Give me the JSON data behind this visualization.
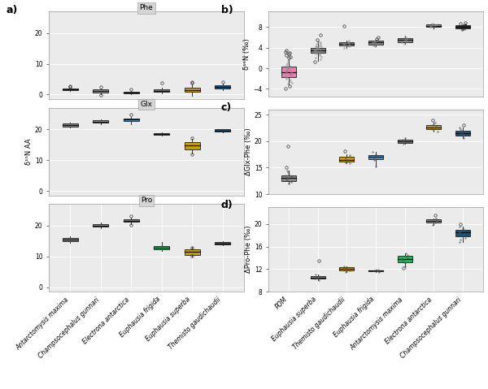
{
  "left_species": [
    "Antarctomysis maxima",
    "Champsocephalus gunnari",
    "Electrona antarctica",
    "Euphausia frigida",
    "Euphausia superba",
    "Themisto gaudichaudii"
  ],
  "right_species": [
    "POM",
    "Euphausia superba",
    "Themisto gaudichaudii",
    "Euphausia frigida",
    "Antarctomysis maxima",
    "Electrona antarctica",
    "Champsocephalus gunnari"
  ],
  "colors_left": {
    "Antarctomysis maxima": "#888888",
    "Champsocephalus gunnari": "#C8A000",
    "Electrona antarctica": "#4A90C4",
    "Euphausia frigida": "#2BAE66",
    "Euphausia superba": "#C8A000",
    "Themisto gaudichaudii": "#1A5276"
  },
  "colors_b": {
    "POM": "#E87EAC",
    "Euphausia superba": "#888888",
    "Themisto gaudichaudii": "#888888",
    "Euphausia frigida": "#888888",
    "Antarctomysis maxima": "#888888",
    "Electrona antarctica": "#C8A000",
    "Champsocephalus gunnari": "#222222"
  },
  "colors_c": {
    "POM": "#888888",
    "Themisto gaudichaudii": "#C8A000",
    "Euphausia frigida": "#4A90C4",
    "Antarctomysis maxima": "#2BAE66",
    "Electrona antarctica": "#C8A000",
    "Champsocephalus gunnari": "#1A5276"
  },
  "colors_d": {
    "Euphausia superba": "#888888",
    "Themisto gaudichaudii": "#C8A000",
    "Euphausia frigida": "#888888",
    "Antarctomysis maxima": "#2BAE66",
    "Electrona antarctica": "#C8A000",
    "Champsocephalus gunnari": "#1A5276"
  },
  "phe_data": {
    "Antarctomysis maxima": {
      "med": 1.8,
      "q1": 1.5,
      "q3": 2.1,
      "whislo": 1.2,
      "whishi": 2.3,
      "fliers": [
        2.5,
        2.7
      ]
    },
    "Champsocephalus gunnari": {
      "med": 1.2,
      "q1": 0.7,
      "q3": 1.6,
      "whislo": 0.2,
      "whishi": 2.1,
      "fliers": [
        -0.2,
        2.6
      ]
    },
    "Electrona antarctica": {
      "med": 0.7,
      "q1": 0.4,
      "q3": 1.0,
      "whislo": 0.2,
      "whishi": 1.3,
      "fliers": [
        1.6
      ]
    },
    "Euphausia frigida": {
      "med": 1.2,
      "q1": 0.8,
      "q3": 1.7,
      "whislo": 0.5,
      "whishi": 2.3,
      "fliers": [
        3.8
      ]
    },
    "Euphausia superba": {
      "med": 1.5,
      "q1": 0.8,
      "q3": 2.2,
      "whislo": -0.4,
      "whishi": 3.2,
      "fliers": [
        3.8,
        4.2
      ]
    },
    "Themisto gaudichaudii": {
      "med": 2.5,
      "q1": 2.0,
      "q3": 3.1,
      "whislo": 1.4,
      "whishi": 3.6,
      "fliers": [
        4.2
      ]
    }
  },
  "glx_data": {
    "Antarctomysis maxima": {
      "med": 21.5,
      "q1": 21.0,
      "q3": 22.0,
      "whislo": 20.6,
      "whishi": 22.2,
      "fliers": []
    },
    "Champsocephalus gunnari": {
      "med": 22.5,
      "q1": 22.2,
      "q3": 23.0,
      "whislo": 21.8,
      "whishi": 23.3,
      "fliers": []
    },
    "Electrona antarctica": {
      "med": 23.2,
      "q1": 22.8,
      "q3": 23.5,
      "whislo": 21.8,
      "whishi": 24.0,
      "fliers": [
        24.8
      ]
    },
    "Euphausia frigida": {
      "med": 18.5,
      "q1": 18.2,
      "q3": 18.9,
      "whislo": 18.0,
      "whishi": 19.1,
      "fliers": []
    },
    "Euphausia superba": {
      "med": 14.8,
      "q1": 13.6,
      "q3": 15.8,
      "whislo": 12.2,
      "whishi": 16.8,
      "fliers": [
        12.0,
        17.2
      ]
    },
    "Themisto gaudichaudii": {
      "med": 19.5,
      "q1": 19.2,
      "q3": 20.0,
      "whislo": 19.0,
      "whishi": 20.2,
      "fliers": []
    }
  },
  "pro_data": {
    "Antarctomysis maxima": {
      "med": 15.5,
      "q1": 15.0,
      "q3": 16.1,
      "whislo": 14.5,
      "whishi": 16.5,
      "fliers": []
    },
    "Champsocephalus gunnari": {
      "med": 20.0,
      "q1": 19.6,
      "q3": 20.5,
      "whislo": 19.1,
      "whishi": 21.0,
      "fliers": []
    },
    "Electrona antarctica": {
      "med": 21.6,
      "q1": 21.2,
      "q3": 22.1,
      "whislo": 20.6,
      "whishi": 22.5,
      "fliers": [
        20.2,
        23.2
      ]
    },
    "Euphausia frigida": {
      "med": 12.8,
      "q1": 12.3,
      "q3": 13.4,
      "whislo": 11.8,
      "whishi": 14.8,
      "fliers": []
    },
    "Euphausia superba": {
      "med": 11.5,
      "q1": 10.5,
      "q3": 12.2,
      "whislo": 10.0,
      "whishi": 13.2,
      "fliers": [
        10.2,
        12.8
      ]
    },
    "Themisto gaudichaudii": {
      "med": 14.3,
      "q1": 13.9,
      "q3": 14.7,
      "whislo": 13.6,
      "whishi": 14.9,
      "fliers": []
    }
  },
  "bulk_b_data": {
    "POM": {
      "med": -0.8,
      "q1": -1.8,
      "q3": 0.3,
      "whislo": -3.2,
      "whishi": 1.8,
      "jitter": [
        -3.0,
        -2.8,
        -2.5,
        -2.2,
        -2.0,
        -1.8,
        -1.6,
        -1.5,
        -1.3,
        -1.1,
        -1.0,
        -0.9,
        -0.8,
        -0.7,
        -0.6,
        -0.5,
        -0.3,
        -0.1,
        0.1,
        0.3,
        0.5,
        0.7,
        1.0,
        1.5,
        2.0,
        2.2,
        2.5,
        2.8,
        3.0,
        -4.0,
        -3.5,
        3.5,
        3.2
      ]
    },
    "Euphausia superba": {
      "med": 3.5,
      "q1": 3.0,
      "q3": 4.0,
      "whislo": 1.5,
      "whishi": 5.2,
      "jitter": [
        1.8,
        2.2,
        2.5,
        2.8,
        3.0,
        3.1,
        3.2,
        3.3,
        3.4,
        3.5,
        3.6,
        3.7,
        3.8,
        3.9,
        4.0,
        4.1,
        4.2,
        4.3,
        4.5,
        4.7,
        5.0,
        5.2,
        6.5,
        1.2,
        2.0,
        3.5,
        4.8,
        5.5,
        3.2,
        2.8,
        4.2,
        3.8,
        5.0
      ]
    },
    "Themisto gaudichaudii": {
      "med": 4.7,
      "q1": 4.4,
      "q3": 5.0,
      "whislo": 4.0,
      "whishi": 5.3,
      "jitter": [
        4.0,
        4.2,
        4.4,
        4.5,
        4.6,
        4.7,
        4.8,
        4.9,
        5.0,
        5.1,
        5.3,
        8.2
      ]
    },
    "Euphausia frigida": {
      "med": 5.0,
      "q1": 4.6,
      "q3": 5.3,
      "whislo": 4.3,
      "whishi": 5.6,
      "jitter": [
        4.3,
        4.5,
        4.7,
        4.8,
        5.0,
        5.1,
        5.2,
        5.3,
        5.5,
        5.7,
        6.0
      ]
    },
    "Antarctomysis maxima": {
      "med": 5.5,
      "q1": 5.1,
      "q3": 5.9,
      "whislo": 4.8,
      "whishi": 6.3,
      "jitter": [
        4.8,
        5.0,
        5.2,
        5.4,
        5.6,
        5.8,
        6.0,
        6.2
      ]
    },
    "Electrona antarctica": {
      "med": 8.2,
      "q1": 8.0,
      "q3": 8.5,
      "whislo": 7.8,
      "whishi": 8.7,
      "jitter": [
        7.8,
        8.0,
        8.1,
        8.2,
        8.3,
        8.4,
        8.5,
        8.6,
        8.7
      ]
    },
    "Champsocephalus gunnari": {
      "med": 8.0,
      "q1": 7.7,
      "q3": 8.3,
      "whislo": 7.4,
      "whishi": 8.6,
      "jitter": [
        7.4,
        7.6,
        7.8,
        7.9,
        8.0,
        8.1,
        8.2,
        8.3,
        8.4,
        8.5,
        8.6,
        8.7,
        8.8
      ]
    }
  },
  "delta_glx_phe_data": {
    "POM": {
      "med": 13.0,
      "q1": 12.5,
      "q3": 13.5,
      "whislo": 12.0,
      "whishi": 14.5,
      "jitter": [
        12.0,
        12.3,
        12.5,
        12.6,
        12.8,
        13.0,
        13.1,
        13.2,
        13.4,
        13.5,
        13.8,
        14.2,
        14.5,
        15.0,
        19.0
      ]
    },
    "Themisto gaudichaudii": {
      "med": 16.5,
      "q1": 16.2,
      "q3": 17.0,
      "whislo": 15.8,
      "whishi": 17.5,
      "jitter": [
        15.8,
        16.0,
        16.3,
        16.5,
        16.8,
        17.0,
        17.3,
        18.2
      ]
    },
    "Euphausia frigida": {
      "med": 17.0,
      "q1": 16.6,
      "q3": 17.4,
      "whislo": 15.2,
      "whishi": 18.0,
      "jitter": [
        15.2,
        16.5,
        16.8,
        17.0,
        17.2,
        17.5,
        18.0
      ]
    },
    "Antarctomysis maxima": {
      "med": 20.0,
      "q1": 19.7,
      "q3": 20.3,
      "whislo": 19.5,
      "whishi": 20.5,
      "jitter": [
        19.5,
        19.8,
        20.0,
        20.2,
        20.5
      ]
    },
    "Electrona antarctica": {
      "med": 22.5,
      "q1": 22.2,
      "q3": 23.0,
      "whislo": 21.8,
      "whishi": 23.5,
      "jitter": [
        21.8,
        22.2,
        22.5,
        22.8,
        23.0,
        23.5,
        24.0
      ]
    },
    "Champsocephalus gunnari": {
      "med": 21.5,
      "q1": 21.0,
      "q3": 22.0,
      "whislo": 20.5,
      "whishi": 22.5,
      "jitter": [
        20.5,
        21.0,
        21.3,
        21.5,
        21.8,
        22.0,
        22.3,
        22.5,
        23.0
      ]
    }
  },
  "delta_pro_phe_data": {
    "Euphausia superba": {
      "med": 10.5,
      "q1": 10.3,
      "q3": 10.8,
      "whislo": 10.1,
      "whishi": 11.0,
      "jitter": [
        10.1,
        10.3,
        10.5,
        10.6,
        10.8,
        11.0,
        13.5
      ]
    },
    "Themisto gaudichaudii": {
      "med": 12.0,
      "q1": 11.8,
      "q3": 12.3,
      "whislo": 11.5,
      "whishi": 12.5,
      "jitter": [
        11.5,
        11.8,
        12.0,
        12.2,
        12.5
      ]
    },
    "Euphausia frigida": {
      "med": 11.7,
      "q1": 11.6,
      "q3": 11.8,
      "whislo": 11.5,
      "whishi": 11.9,
      "jitter": [
        11.5,
        11.6,
        11.7,
        11.8,
        11.9
      ]
    },
    "Antarctomysis maxima": {
      "med": 13.8,
      "q1": 13.2,
      "q3": 14.4,
      "whislo": 12.5,
      "whishi": 14.8,
      "jitter": [
        12.5,
        13.0,
        13.5,
        13.8,
        14.0,
        14.5,
        14.8,
        12.2
      ]
    },
    "Electrona antarctica": {
      "med": 20.5,
      "q1": 20.3,
      "q3": 20.8,
      "whislo": 19.8,
      "whishi": 21.0,
      "jitter": [
        19.8,
        20.2,
        20.5,
        20.7,
        21.0,
        21.5
      ]
    },
    "Champsocephalus gunnari": {
      "med": 18.5,
      "q1": 17.8,
      "q3": 19.0,
      "whislo": 16.8,
      "whishi": 19.5,
      "jitter": [
        16.8,
        17.2,
        17.5,
        18.0,
        18.5,
        18.8,
        19.0,
        19.5,
        20.0,
        19.2
      ]
    }
  },
  "bg_color": "#EBEBEB",
  "grid_color": "white",
  "title_bg": "#D5D5D5",
  "ylabel_a": "δ¹⁵N AA",
  "ylabel_b": "δ¹⁵N (‰)",
  "ylabel_c": "ΔGlx-Phe (‰)",
  "ylabel_d": "ΔPro-Phe (‰)"
}
